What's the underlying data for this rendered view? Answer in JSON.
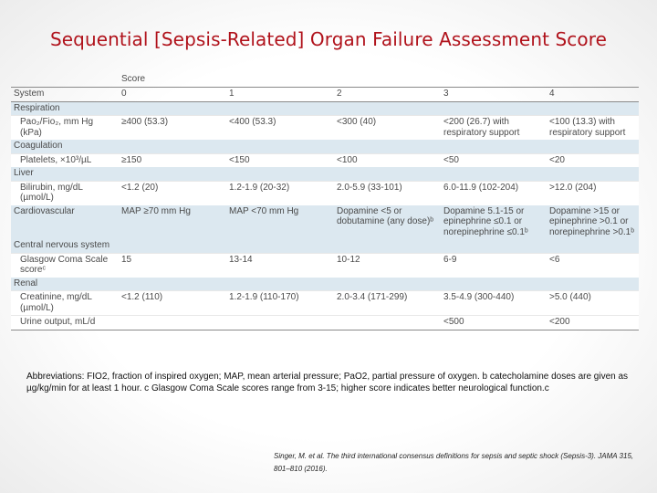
{
  "title": "Sequential [Sepsis-Related] Organ Failure Assessment Score",
  "table": {
    "score_header": "Score",
    "columns": [
      "System",
      "0",
      "1",
      "2",
      "3",
      "4"
    ],
    "sections": [
      {
        "name": "Respiration",
        "rows": [
          [
            "Pao₂/Fio₂, mm Hg (kPa)",
            "≥400 (53.3)",
            "<400 (53.3)",
            "<300 (40)",
            "<200 (26.7) with respiratory support",
            "<100 (13.3) with respiratory support"
          ]
        ]
      },
      {
        "name": "Coagulation",
        "rows": [
          [
            "Platelets, ×10³/µL",
            "≥150",
            "<150",
            "<100",
            "<50",
            "<20"
          ]
        ]
      },
      {
        "name": "Liver",
        "rows": [
          [
            "Bilirubin, mg/dL (µmol/L)",
            "<1.2 (20)",
            "1.2-1.9 (20-32)",
            "2.0-5.9 (33-101)",
            "6.0-11.9 (102-204)",
            ">12.0 (204)"
          ]
        ]
      },
      {
        "name": "Cardiovascular",
        "inline": true,
        "cells": [
          "MAP ≥70 mm Hg",
          "MAP <70 mm Hg",
          "Dopamine <5 or dobutamine (any dose)ᵇ",
          "Dopamine 5.1-15 or epinephrine ≤0.1 or norepinephrine ≤0.1ᵇ",
          "Dopamine >15 or epinephrine >0.1 or norepinephrine >0.1ᵇ"
        ]
      },
      {
        "name": "Central nervous system",
        "rows": [
          [
            "Glasgow Coma Scale scoreᶜ",
            "15",
            "13-14",
            "10-12",
            "6-9",
            "<6"
          ]
        ]
      },
      {
        "name": "Renal",
        "rows": [
          [
            "Creatinine, mg/dL (µmol/L)",
            "<1.2 (110)",
            "1.2-1.9 (110-170)",
            "2.0-3.4 (171-299)",
            "3.5-4.9 (300-440)",
            ">5.0 (440)"
          ],
          [
            "Urine output, mL/d",
            "",
            "",
            "",
            "<500",
            "<200"
          ]
        ]
      }
    ]
  },
  "abbreviations": "Abbreviations: FIO2, fraction of inspired oxygen; MAP, mean arterial pressure; PaO2, partial pressure of oxygen. b catecholamine doses are given as µg/kg/min for at least 1 hour. c Glasgow Coma Scale scores range from 3-15; higher score indicates better neurological function.c",
  "citation": "Singer, M. et al. The third international consensus definitions for sepsis and septic shock (Sepsis-3). JAMA 315, 801–810 (2016).",
  "colors": {
    "title": "#b0121b",
    "section_bg": "#dce8f0",
    "rule": "#8a8a8a"
  }
}
